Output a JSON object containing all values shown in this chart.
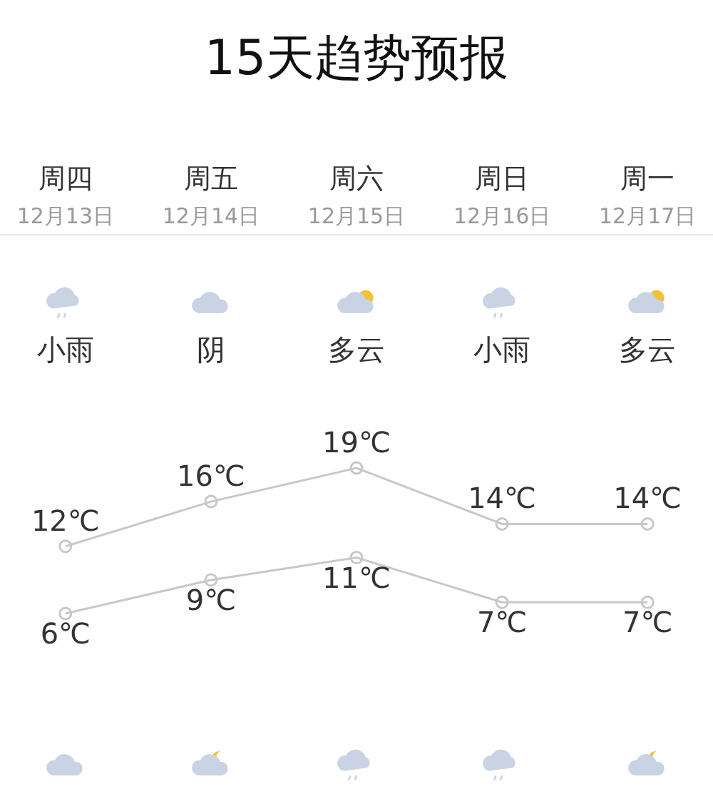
{
  "chart_data": {
    "type": "line",
    "title": "15天趋势预报",
    "categories": [
      "周四\n12月13日",
      "周五\n12月14日",
      "周六\n12月15日",
      "周日\n12月16日",
      "周一\n12月17日"
    ],
    "series": [
      {
        "name": null,
        "color": "#c8c8c8",
        "values": [
          12,
          16,
          19,
          14,
          14
        ],
        "value_labels": [
          "12℃",
          "16℃",
          "19℃",
          "14℃",
          "14℃"
        ]
      },
      {
        "name": null,
        "color": "#c8c8c8",
        "values": [
          6,
          9,
          11,
          7,
          7
        ],
        "value_labels": [
          "6℃",
          "9℃",
          "11℃",
          "7℃",
          "7℃"
        ]
      }
    ],
    "annotations": [
      "小雨",
      "阴",
      "多云",
      "小雨",
      "多云"
    ],
    "marker": "circle",
    "line_style": "solid",
    "grid": false
  }
}
